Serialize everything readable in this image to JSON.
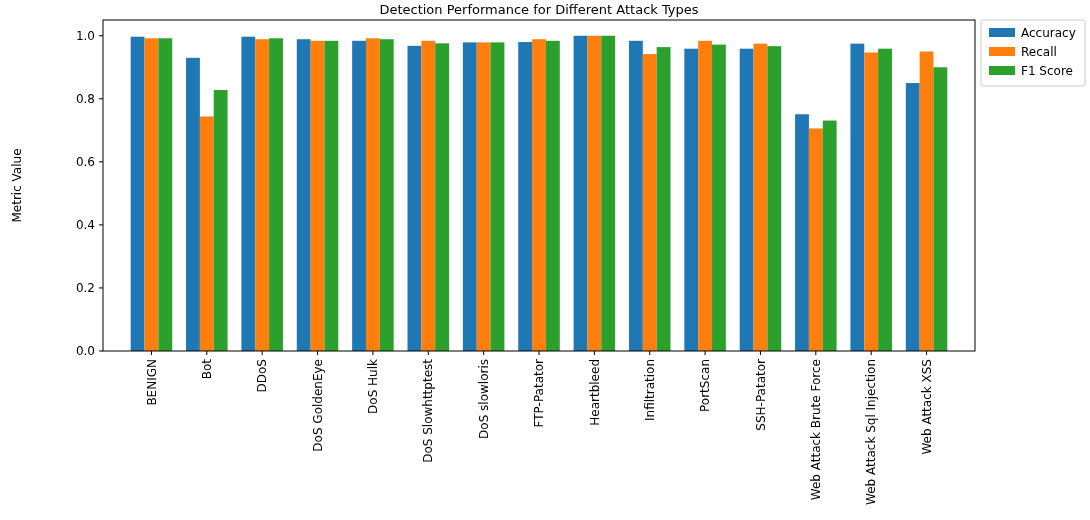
{
  "chart_data": {
    "type": "bar",
    "title": "Detection Performance for Different Attack Types",
    "ylabel": "Metric Value",
    "categories": [
      "BENIGN",
      "Bot",
      "DDoS",
      "DoS GoldenEye",
      "DoS Hulk",
      "DoS Slowhttptest",
      "DoS slowloris",
      "FTP-Patator",
      "Heartbleed",
      "Infiltration",
      "PortScan",
      "SSH-Patator",
      "Web Attack Brute Force",
      "Web Attack Sql Injection",
      "Web Attack XSS"
    ],
    "series": [
      {
        "name": "Accuracy",
        "color": "#1f77b4",
        "values": [
          0.997,
          0.93,
          0.997,
          0.989,
          0.984,
          0.968,
          0.979,
          0.98,
          1.0,
          0.984,
          0.959,
          0.959,
          0.751,
          0.975,
          0.85
        ]
      },
      {
        "name": "Recall",
        "color": "#ff7f0e",
        "values": [
          0.992,
          0.744,
          0.989,
          0.984,
          0.992,
          0.984,
          0.979,
          0.989,
          1.0,
          0.942,
          0.984,
          0.975,
          0.706,
          0.947,
          0.95
        ]
      },
      {
        "name": "F1 Score",
        "color": "#2ca02c",
        "values": [
          0.992,
          0.828,
          0.992,
          0.984,
          0.989,
          0.976,
          0.979,
          0.984,
          1.0,
          0.964,
          0.972,
          0.967,
          0.731,
          0.959,
          0.9
        ]
      }
    ],
    "ylim": [
      0,
      1.05
    ],
    "yticks": [
      {
        "value": 0,
        "label": "0.0"
      },
      {
        "value": 0.2,
        "label": "0.2"
      },
      {
        "value": 0.4,
        "label": "0.4"
      },
      {
        "value": 0.6,
        "label": "0.6"
      },
      {
        "value": 0.8,
        "label": "0.8"
      },
      {
        "value": 1,
        "label": "1.0"
      }
    ],
    "legend": "top right"
  }
}
